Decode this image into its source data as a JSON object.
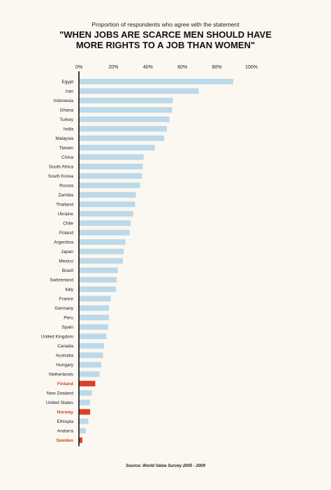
{
  "chart_data": {
    "type": "bar",
    "orientation": "horizontal",
    "subtitle": "Proportion of respondents who agree with the statement",
    "title_line1": "\"WHEN JOBS ARE SCARCE MEN SHOULD HAVE",
    "title_line2": "MORE RIGHTS TO A JOB THAN WOMEN\"",
    "source": "Source: World Value Survey 2005 - 2009",
    "xlim": [
      0,
      100
    ],
    "xticks": [
      "0%",
      "20%",
      "40%",
      "60%",
      "80%",
      "100%"
    ],
    "xtick_values": [
      0,
      20,
      40,
      60,
      80,
      100
    ],
    "grid": false,
    "colors": {
      "bar": "#bcd9ea",
      "highlight": "#d9412c",
      "axis": "#111111"
    },
    "categories": [
      "Egypt",
      "Iran",
      "Indonesia",
      "Ghana",
      "Turkey",
      "India",
      "Malaysia",
      "Taiwan",
      "China",
      "South Africa",
      "South Korea",
      "Russia",
      "Zambia",
      "Thailand",
      "Ukraine",
      "Chile",
      "Poland",
      "Argentina",
      "Japan",
      "Mexico",
      "Brazil",
      "Switzerland",
      "Italy",
      "France",
      "Germany",
      "Peru",
      "Spain",
      "United Kingdom",
      "Canada",
      "Australia",
      "Hungary",
      "Netherlands",
      "Finland",
      "New Zealand",
      "United States",
      "Norway",
      "Ethiopia",
      "Andorra",
      "Sweden"
    ],
    "values": [
      89.5,
      69.5,
      54.5,
      54,
      52.5,
      51,
      49.5,
      44,
      37.5,
      37,
      36.5,
      35.5,
      33,
      32.5,
      31.5,
      30,
      29.5,
      27,
      26,
      25.5,
      22.5,
      22,
      21.5,
      18.5,
      17.5,
      17.5,
      17,
      16,
      14.5,
      14,
      13,
      12,
      9.5,
      7.5,
      6.5,
      6.5,
      5.5,
      4,
      2
    ],
    "highlighted": [
      "Finland",
      "Norway",
      "Sweden"
    ]
  }
}
